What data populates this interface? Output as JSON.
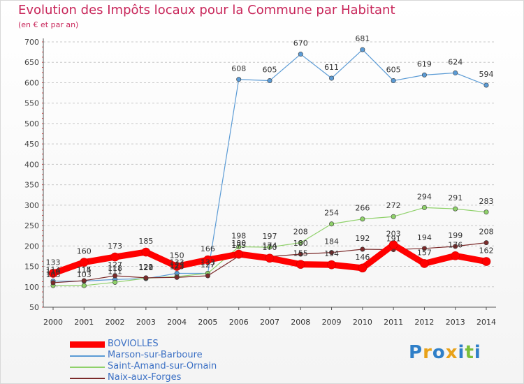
{
  "header": {
    "title": "Evolution des Impôts locaux pour la Commune par Habitant",
    "subtitle": "(en € et par an)"
  },
  "brand": {
    "text": "Proxiti"
  },
  "chart_data": {
    "type": "line",
    "title": "Evolution des Impôts locaux pour la Commune par Habitant",
    "subtitle": "(en € et par an)",
    "x": [
      2000,
      2001,
      2002,
      2003,
      2004,
      2005,
      2006,
      2007,
      2008,
      2009,
      2010,
      2011,
      2012,
      2013,
      2014
    ],
    "ylim": [
      50,
      700
    ],
    "yticks": [
      50,
      100,
      150,
      200,
      250,
      300,
      350,
      400,
      450,
      500,
      550,
      600,
      650,
      700
    ],
    "grid": "horizontal-dashed",
    "legend_position": "bottom-left",
    "series": [
      {
        "name": "BOVIOLLES",
        "color": "#ff0000",
        "values": [
          133,
          160,
          173,
          185,
          150,
          166,
          180,
          170,
          155,
          154,
          146,
          203,
          157,
          176,
          162
        ]
      },
      {
        "name": "Marson-sur-Barboure",
        "color": "#5b9bd5",
        "values": [
          114,
          114,
          118,
          120,
          133,
          133,
          608,
          605,
          670,
          611,
          681,
          605,
          619,
          624,
          594
        ]
      },
      {
        "name": "Saint-Amand-sur-Ornain",
        "color": "#8fd16a",
        "values": [
          103,
          103,
          111,
          121,
          125,
          133,
          198,
          197,
          208,
          254,
          266,
          272,
          294,
          291,
          283
        ]
      },
      {
        "name": "Naix-aux-Forges",
        "color": "#7b2a2a",
        "values": [
          110,
          115,
          127,
          122,
          123,
          127,
          175,
          174,
          180,
          184,
          192,
          191,
          194,
          199,
          208
        ]
      }
    ]
  }
}
